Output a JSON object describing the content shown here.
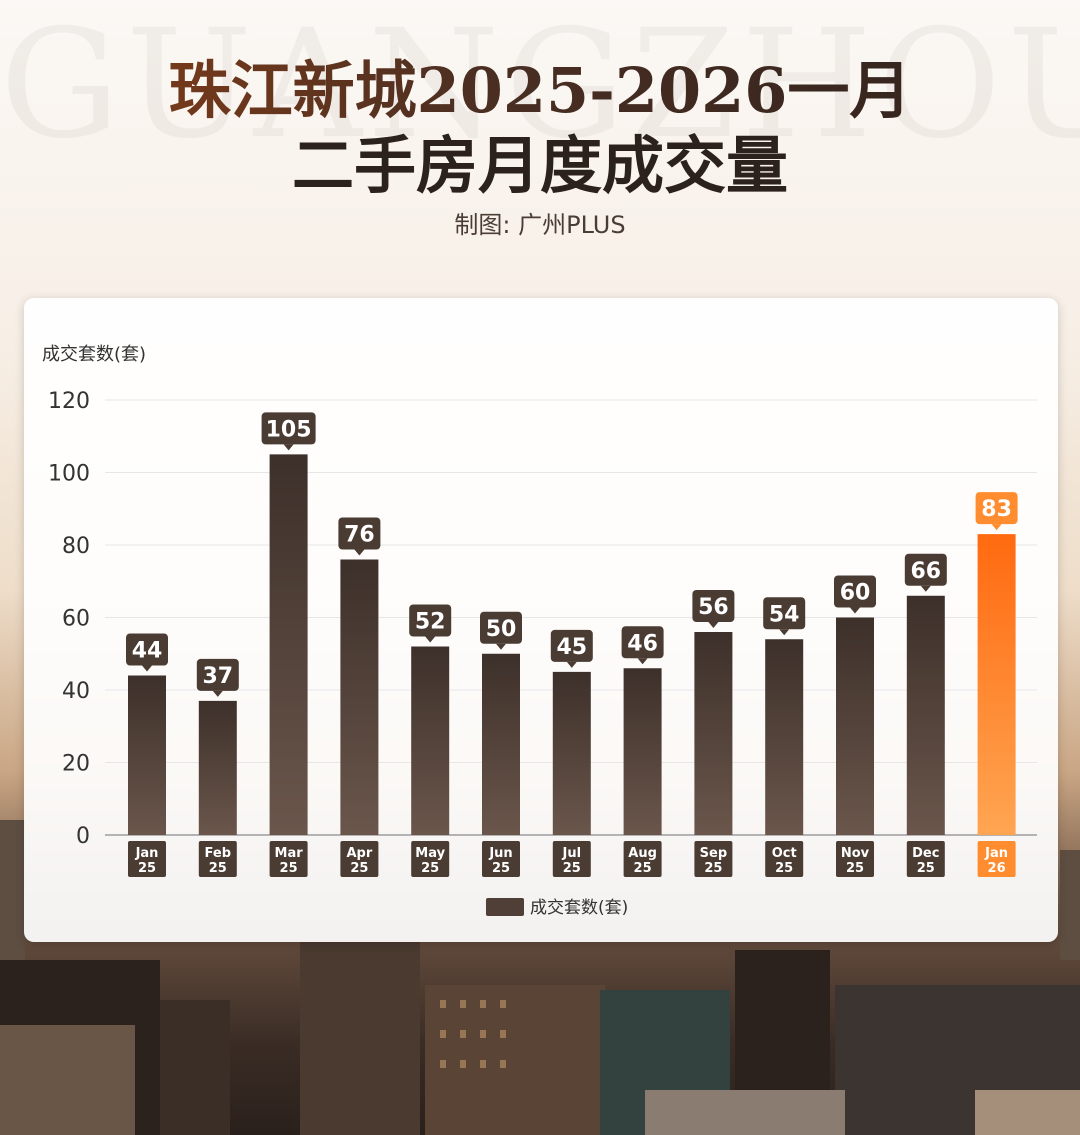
{
  "watermark": "GUANGZHOU",
  "title_line1": "珠江新城2025-2026一月",
  "title_line2": "二手房月度成交量",
  "credit": "制图: 广州PLUS",
  "colors": {
    "bar": "#4f3f36",
    "bar_highlight": "#ff7a1a",
    "label_bg": "#4a3b33",
    "label_bg_highlight": "#ff8c2e"
  },
  "chart_data": {
    "type": "bar",
    "ylabel": "成交套数(套)",
    "ylim": [
      0,
      120
    ],
    "yticks": [
      0,
      20,
      40,
      60,
      80,
      100,
      120
    ],
    "grid": true,
    "legend_position": "bottom-center",
    "categories": [
      [
        "Jan",
        "25"
      ],
      [
        "Feb",
        "25"
      ],
      [
        "Mar",
        "25"
      ],
      [
        "Apr",
        "25"
      ],
      [
        "May",
        "25"
      ],
      [
        "Jun",
        "25"
      ],
      [
        "Jul",
        "25"
      ],
      [
        "Aug",
        "25"
      ],
      [
        "Sep",
        "25"
      ],
      [
        "Oct",
        "25"
      ],
      [
        "Nov",
        "25"
      ],
      [
        "Dec",
        "25"
      ],
      [
        "Jan",
        "26"
      ]
    ],
    "series": [
      {
        "name": "成交套数(套)",
        "values": [
          44,
          37,
          105,
          76,
          52,
          50,
          45,
          46,
          56,
          54,
          60,
          66,
          83
        ]
      }
    ],
    "highlight_index": 12
  }
}
